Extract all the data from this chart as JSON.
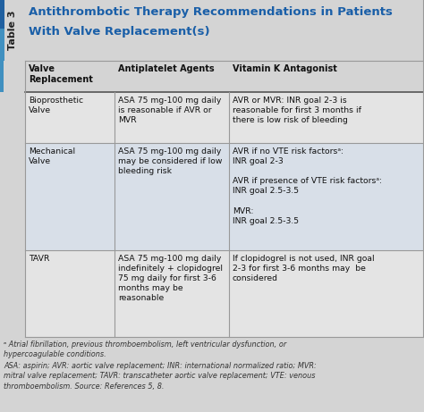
{
  "title_line1": "Antithrombotic Therapy Recommendations in Patients",
  "title_line2": "With Valve Replacement(s)",
  "table_label": "Table 3",
  "col_headers": [
    "Valve\nReplacement",
    "Antiplatelet Agents",
    "Vitamin K Antagonist"
  ],
  "rows": [
    {
      "valve": "Bioprosthetic\nValve",
      "antiplatelet": "ASA 75 mg-100 mg daily\nis reasonable if AVR or\nMVR",
      "vka": "AVR or MVR: INR goal 2-3 is\nreasonable for first 3 months if\nthere is low risk of bleeding"
    },
    {
      "valve": "Mechanical\nValve",
      "antiplatelet": "ASA 75 mg-100 mg daily\nmay be considered if low\nbleeding risk",
      "vka": "AVR if no VTE risk factorsᵃ:\nINR goal 2-3\n\nAVR if presence of VTE risk factorsᵃ:\nINR goal 2.5-3.5\n\nMVR:\nINR goal 2.5-3.5"
    },
    {
      "valve": "TAVR",
      "antiplatelet": "ASA 75 mg-100 mg daily\nindefinitely + clopidogrel\n75 mg daily for first 3-6\nmonths may be\nreasonable",
      "vka": "If clopidogrel is not used, INR goal\n2-3 for first 3-6 months may  be\nconsidered"
    }
  ],
  "footnote1": "ᵃ Atrial fibrillation, previous thromboembolism, left ventricular dysfunction, or\nhypercoagulable conditions.",
  "footnote2": "ASA: aspirin; AVR: aortic valve replacement; INR: international normalized ratio; MVR:\nmitral valve replacement; TAVR: transcatheter aortic valve replacement; VTE: venous\nthromboembolism. Source: References 5, 8.",
  "bg_color": "#d4d4d4",
  "title_area_bg": "#d4d4d4",
  "table_label_bg": "#2060a0",
  "table_label_color": "#ffffff",
  "title_color": "#1a5fa8",
  "header_text_color": "#111111",
  "row0_bg": "#e4e4e4",
  "row1_bg": "#d8dfe8",
  "row2_bg": "#e4e4e4",
  "border_color": "#999999",
  "text_color": "#111111",
  "footnote_color": "#333333",
  "label_bar_color": "#2060a0",
  "label_bar2_color": "#4090c0"
}
